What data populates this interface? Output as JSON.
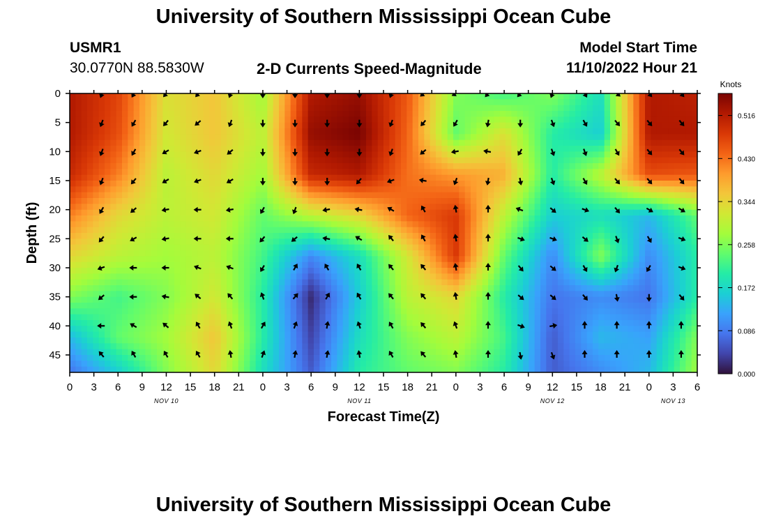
{
  "header": {
    "title": "University of Southern Mississippi Ocean Cube",
    "station_id": "USMR1",
    "station_coords": "30.0770N  88.5830W",
    "chart_title": "2-D Currents Speed-Magnitude",
    "model_start_label": "Model Start Time",
    "model_start_value": "11/10/2022 Hour 21"
  },
  "footer": {
    "title": "University of Southern Mississippi Ocean Cube"
  },
  "chart_data": {
    "type": "heatmap",
    "title": "2-D Currents Speed-Magnitude",
    "xlabel": "Forecast Time(Z)",
    "ylabel": "Depth (ft)",
    "x_ticks": [
      "0",
      "3",
      "6",
      "9",
      "12",
      "15",
      "18",
      "21",
      "0",
      "3",
      "6",
      "9",
      "12",
      "15",
      "18",
      "21",
      "0",
      "3",
      "6",
      "9",
      "12",
      "15",
      "18",
      "21",
      "0",
      "3",
      "6"
    ],
    "date_labels": [
      {
        "label": "NOV 10",
        "tick_index": 4
      },
      {
        "label": "NOV 11",
        "tick_index": 12
      },
      {
        "label": "NOV 12",
        "tick_index": 20
      },
      {
        "label": "NOV 13",
        "tick_index": 25
      }
    ],
    "y_ticks": [
      0,
      5,
      10,
      15,
      20,
      25,
      30,
      35,
      40,
      45
    ],
    "ylim": [
      0,
      48
    ],
    "xlim_hours": [
      0,
      78
    ],
    "colorbar": {
      "unit": "Knots",
      "min": 0.0,
      "max": 0.56,
      "tick_values": [
        0.0,
        0.086,
        0.172,
        0.258,
        0.344,
        0.43,
        0.516
      ],
      "tick_labels": [
        "0.000",
        "0.086",
        "0.172",
        "0.258",
        "0.344",
        "0.430",
        "0.516"
      ],
      "colormap": [
        "#30123b",
        "#4145ab",
        "#4675ed",
        "#39a2fc",
        "#1bcfd4",
        "#24eca6",
        "#61fc6c",
        "#a4fc3b",
        "#d1e834",
        "#f3c63a",
        "#fe9b2d",
        "#f36315",
        "#d93806",
        "#b11901",
        "#7a0402"
      ]
    },
    "speed_grid_depths_ft": [
      0,
      7,
      14,
      21,
      28,
      35,
      42,
      48
    ],
    "speed_grid_hours": [
      0,
      6,
      12,
      18,
      24,
      30,
      36,
      42,
      48,
      54,
      60,
      66,
      72,
      78
    ],
    "speed_grid_knots": [
      [
        0.52,
        0.47,
        0.33,
        0.36,
        0.28,
        0.52,
        0.54,
        0.45,
        0.26,
        0.22,
        0.26,
        0.18,
        0.52,
        0.51
      ],
      [
        0.52,
        0.46,
        0.32,
        0.36,
        0.3,
        0.54,
        0.56,
        0.44,
        0.24,
        0.33,
        0.2,
        0.16,
        0.52,
        0.52
      ],
      [
        0.5,
        0.42,
        0.3,
        0.34,
        0.28,
        0.5,
        0.52,
        0.43,
        0.4,
        0.38,
        0.2,
        0.3,
        0.46,
        0.45
      ],
      [
        0.42,
        0.34,
        0.3,
        0.32,
        0.24,
        0.3,
        0.34,
        0.44,
        0.48,
        0.3,
        0.16,
        0.18,
        0.14,
        0.24
      ],
      [
        0.34,
        0.3,
        0.28,
        0.3,
        0.22,
        0.1,
        0.18,
        0.32,
        0.48,
        0.24,
        0.1,
        0.26,
        0.1,
        0.2
      ],
      [
        0.26,
        0.22,
        0.26,
        0.32,
        0.2,
        0.02,
        0.16,
        0.3,
        0.34,
        0.2,
        0.08,
        0.1,
        0.08,
        0.2
      ],
      [
        0.14,
        0.24,
        0.28,
        0.36,
        0.2,
        0.04,
        0.18,
        0.26,
        0.3,
        0.22,
        0.06,
        0.14,
        0.12,
        0.26
      ],
      [
        0.08,
        0.16,
        0.26,
        0.34,
        0.18,
        0.06,
        0.2,
        0.24,
        0.26,
        0.2,
        0.06,
        0.1,
        0.14,
        0.28
      ]
    ],
    "vector_depths_ft": [
      0,
      5,
      10,
      15,
      20,
      25,
      30,
      35,
      40,
      45
    ],
    "vector_hours": [
      4,
      8,
      12,
      16,
      20,
      24,
      28,
      32,
      36,
      40,
      44,
      48,
      52,
      56,
      60,
      64,
      68,
      72,
      76
    ],
    "vector_direction_deg": [
      [
        200,
        210,
        220,
        220,
        200,
        180,
        180,
        180,
        180,
        200,
        230,
        240,
        220,
        220,
        200,
        150,
        130,
        140,
        140
      ],
      [
        200,
        210,
        220,
        230,
        200,
        180,
        180,
        180,
        180,
        200,
        220,
        210,
        190,
        180,
        160,
        150,
        140,
        140,
        140
      ],
      [
        200,
        210,
        240,
        250,
        230,
        180,
        180,
        180,
        180,
        200,
        230,
        260,
        280,
        210,
        160,
        160,
        150,
        140,
        140
      ],
      [
        200,
        220,
        240,
        250,
        240,
        180,
        180,
        180,
        220,
        250,
        280,
        200,
        190,
        170,
        160,
        150,
        140,
        140,
        140
      ],
      [
        210,
        230,
        260,
        270,
        260,
        210,
        200,
        260,
        280,
        300,
        330,
        350,
        0,
        290,
        130,
        110,
        140,
        120,
        120
      ],
      [
        220,
        240,
        260,
        270,
        270,
        220,
        230,
        280,
        300,
        320,
        330,
        350,
        0,
        110,
        110,
        130,
        160,
        150,
        110
      ],
      [
        250,
        270,
        270,
        290,
        290,
        210,
        30,
        330,
        330,
        320,
        320,
        350,
        0,
        140,
        130,
        150,
        200,
        210,
        110
      ],
      [
        230,
        270,
        280,
        310,
        320,
        340,
        40,
        30,
        330,
        320,
        320,
        350,
        0,
        130,
        130,
        140,
        170,
        180,
        140
      ],
      [
        270,
        300,
        310,
        330,
        340,
        30,
        20,
        10,
        340,
        330,
        320,
        340,
        0,
        110,
        80,
        0,
        0,
        0,
        0
      ],
      [
        320,
        330,
        330,
        330,
        350,
        20,
        10,
        10,
        350,
        330,
        320,
        350,
        0,
        170,
        160,
        0,
        0,
        0,
        0
      ]
    ]
  }
}
